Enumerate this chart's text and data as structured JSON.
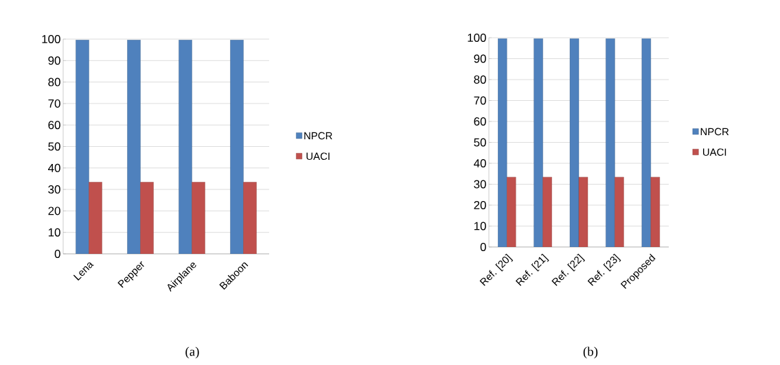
{
  "chart_data": [
    {
      "type": "bar",
      "categories": [
        "Lena",
        "Pepper",
        "Airplane",
        "Baboon"
      ],
      "series": [
        {
          "name": "NPCR",
          "color": "#4f81bd",
          "values": [
            99.6,
            99.6,
            99.6,
            99.6
          ]
        },
        {
          "name": "UACI",
          "color": "#c0504d",
          "values": [
            33.4,
            33.4,
            33.4,
            33.4
          ]
        }
      ],
      "ylim": [
        0,
        100
      ],
      "yticks": [
        0,
        10,
        20,
        30,
        40,
        50,
        60,
        70,
        80,
        90,
        100
      ],
      "grid": "y",
      "legend": "right",
      "annotations": [
        "(a)"
      ]
    },
    {
      "type": "bar",
      "categories": [
        "Ref. [20]",
        "Ref. [21]",
        "Ref. [22]",
        "Ref. [23]",
        "Proposed"
      ],
      "series": [
        {
          "name": "NPCR",
          "color": "#4f81bd",
          "values": [
            99.6,
            99.6,
            99.6,
            99.6,
            99.6
          ]
        },
        {
          "name": "UACI",
          "color": "#c0504d",
          "values": [
            33.4,
            33.4,
            33.4,
            33.4,
            33.4
          ]
        }
      ],
      "ylim": [
        0,
        100
      ],
      "yticks": [
        0,
        10,
        20,
        30,
        40,
        50,
        60,
        70,
        80,
        90,
        100
      ],
      "grid": "y",
      "legend": "right",
      "annotations": [
        "(b)"
      ]
    }
  ]
}
